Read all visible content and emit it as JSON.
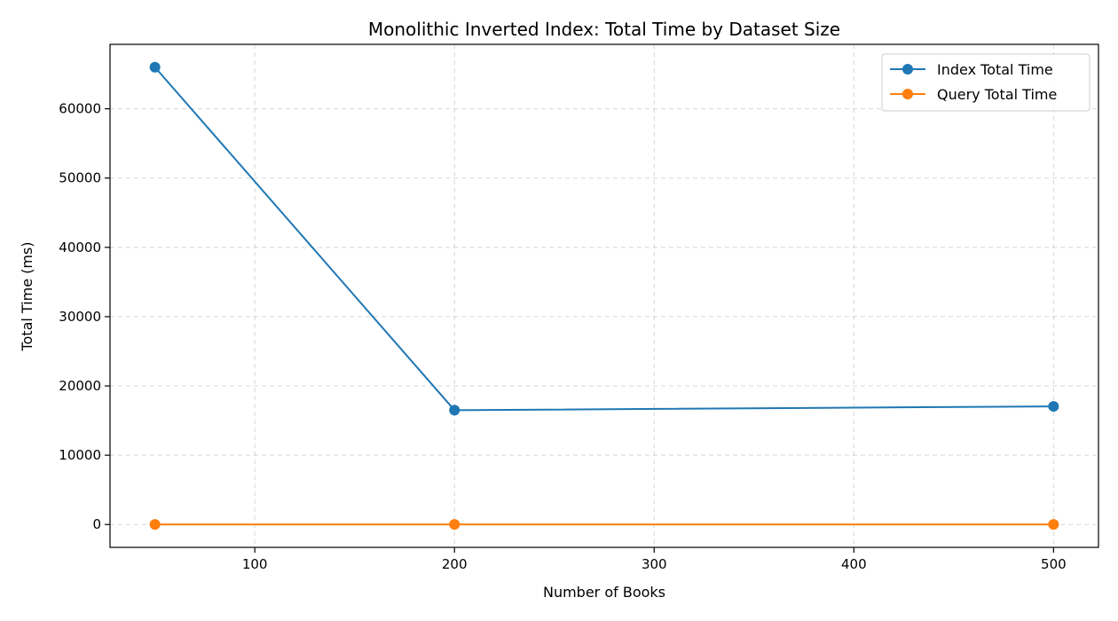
{
  "chart_data": {
    "type": "line",
    "title": "Monolithic Inverted Index: Total Time by Dataset Size",
    "xlabel": "Number of Books",
    "ylabel": "Total Time (ms)",
    "x": [
      50,
      200,
      500
    ],
    "xlim": [
      27.5,
      522.5
    ],
    "ylim": [
      -3300,
      69300
    ],
    "xticks": [
      100,
      200,
      300,
      400,
      500
    ],
    "yticks": [
      0,
      10000,
      20000,
      30000,
      40000,
      50000,
      60000
    ],
    "grid": true,
    "legend_position": "top-right",
    "series": [
      {
        "name": "Index Total Time",
        "values": [
          66000,
          16500,
          17050
        ],
        "color": "#1f77b4"
      },
      {
        "name": "Query Total Time",
        "values": [
          20,
          15,
          15
        ],
        "color": "#ff7f0e"
      }
    ]
  }
}
